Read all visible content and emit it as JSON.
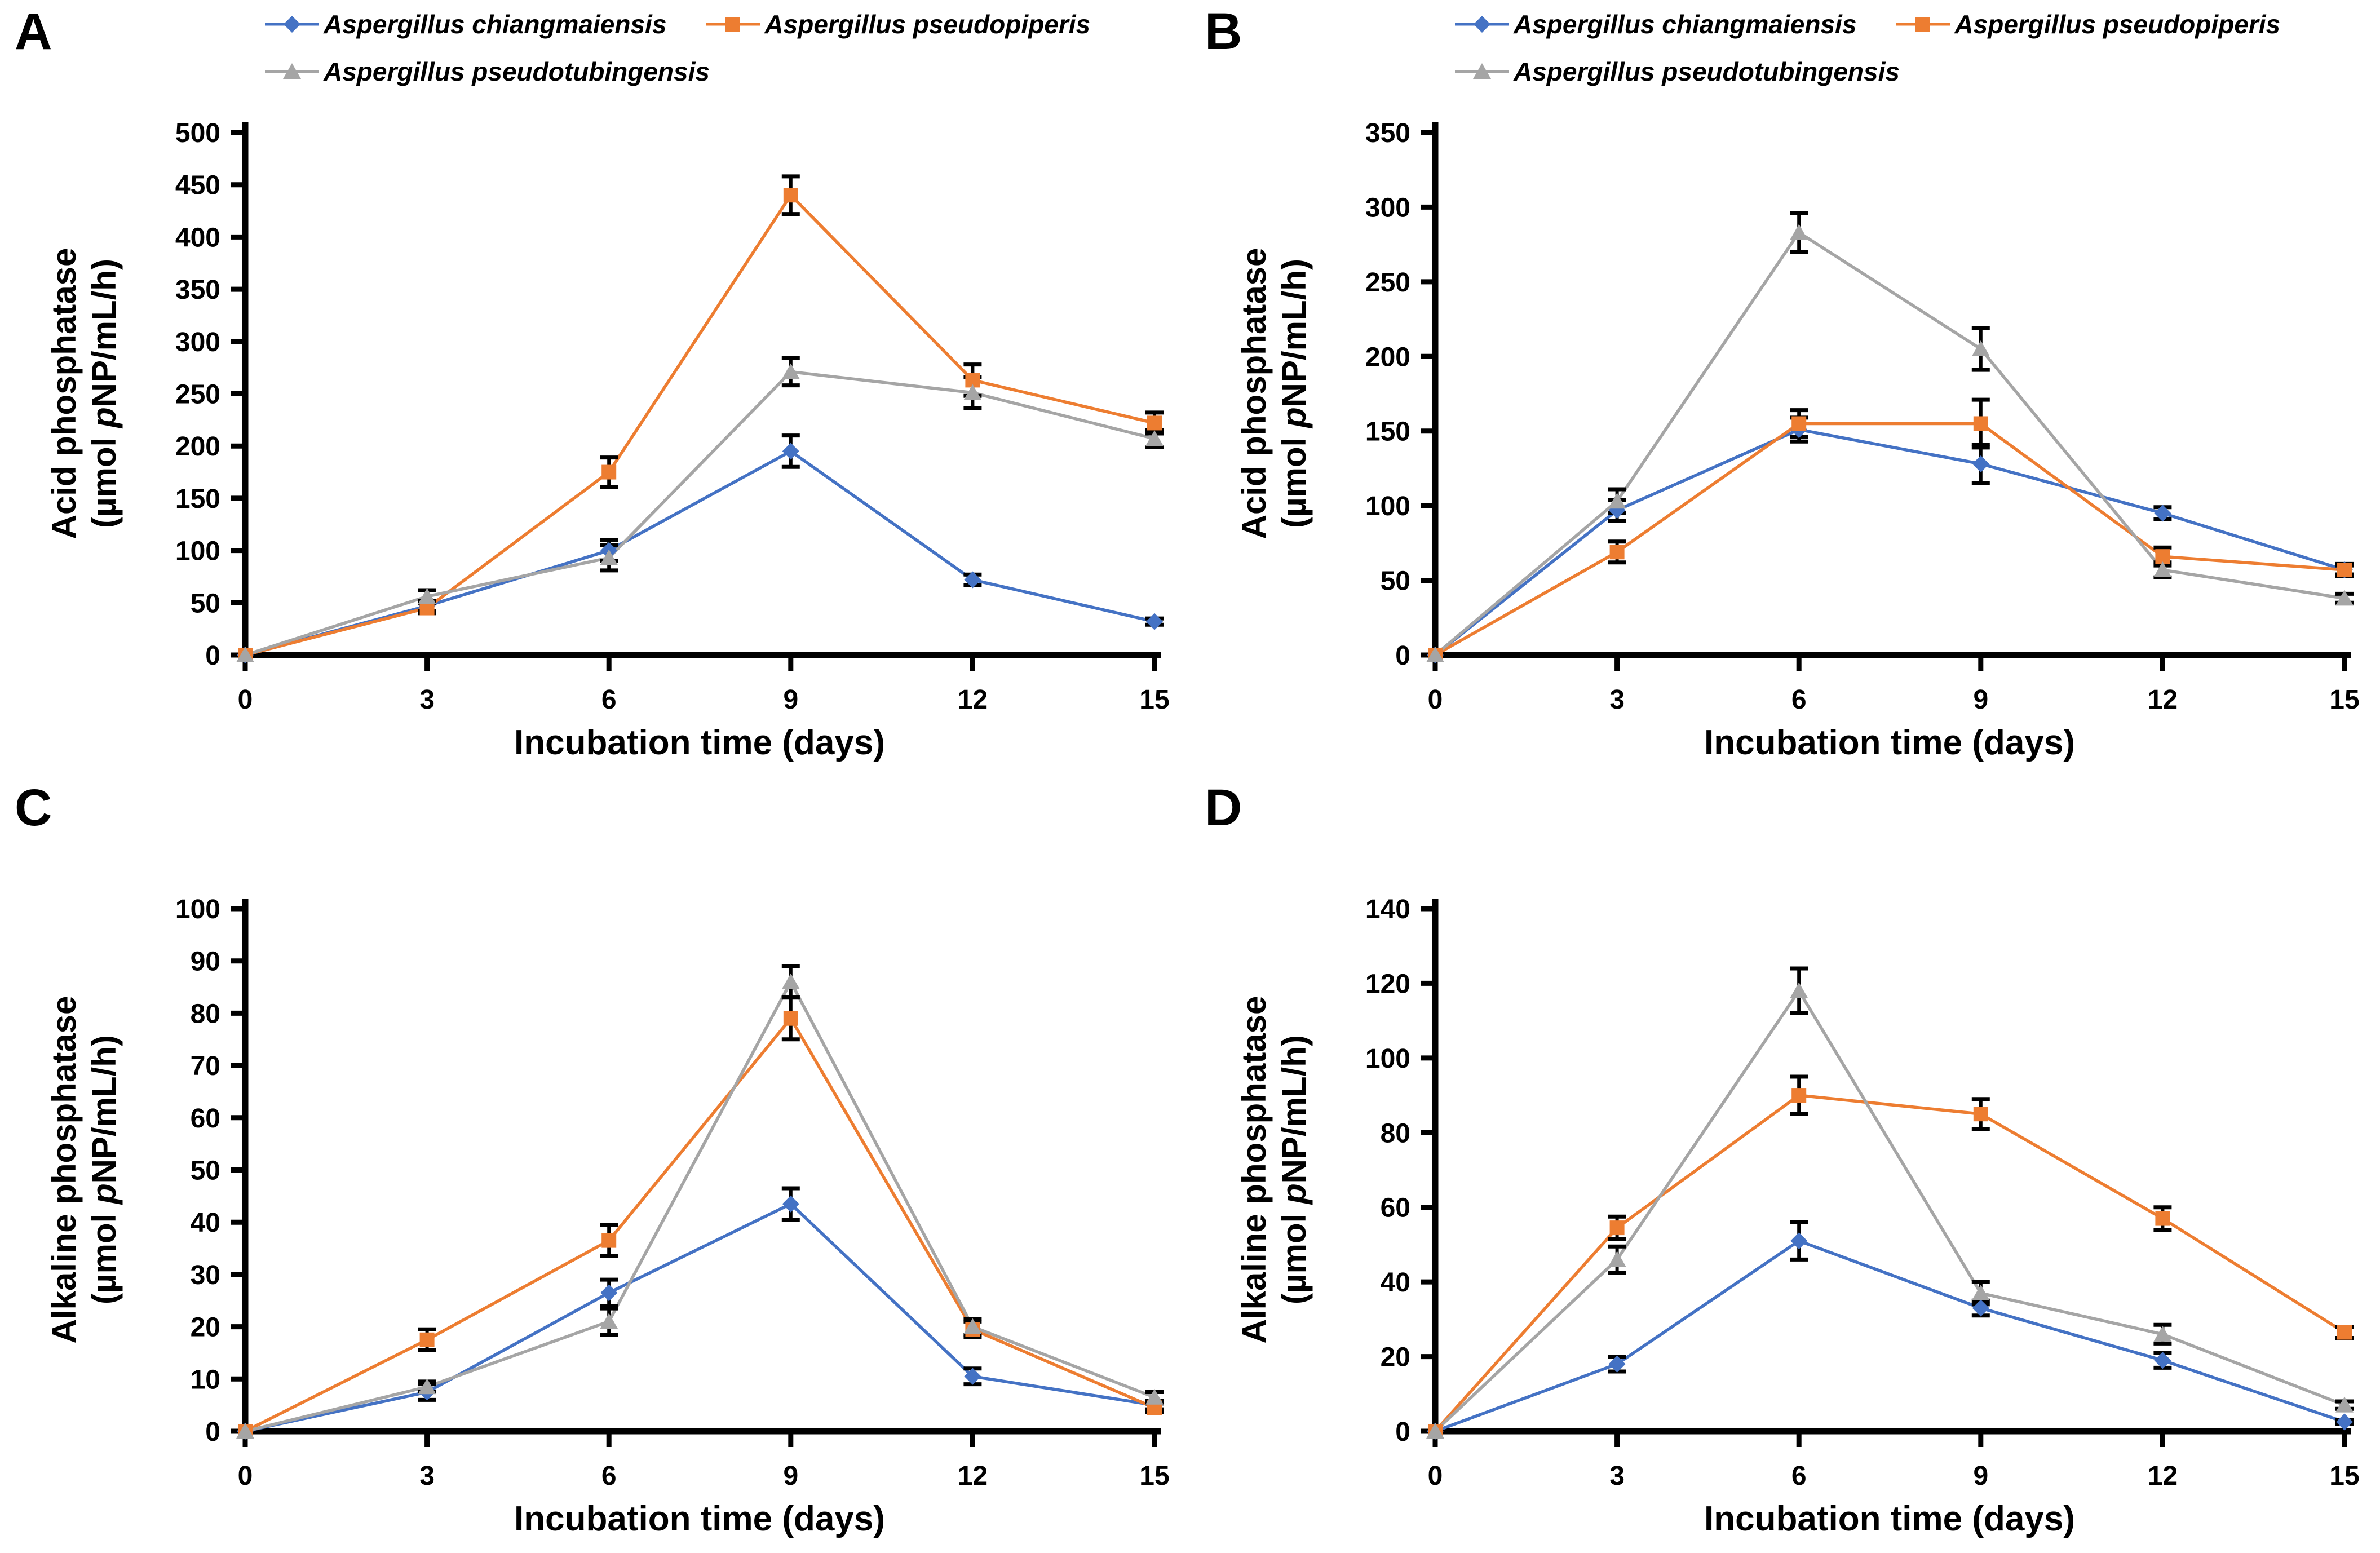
{
  "background": "#FFFFFF",
  "axis_color": "#000000",
  "error_bar_color": "#000000",
  "axis_unit_pre": "(µmol ",
  "axis_unit_italic": "p",
  "axis_unit_post": "NP/mL/h)",
  "legend": {
    "position": "top",
    "items": [
      {
        "label": "Aspergillus chiangmaiensis",
        "color": "#4472C4",
        "marker": "diamond"
      },
      {
        "label": "Aspergillus pseudopiperis",
        "color": "#ED7D31",
        "marker": "square"
      },
      {
        "label": "Aspergillus pseudotubingensis",
        "color": "#A5A5A5",
        "marker": "triangle"
      }
    ]
  },
  "chart_data": [
    {
      "type": "line",
      "panel_label": "A",
      "ylabel_line1": "Acid phosphatase",
      "xlabel": "Incubation time (days)",
      "x": [
        0,
        3,
        6,
        9,
        12,
        15
      ],
      "ylim": [
        0,
        500
      ],
      "ytick_step": 50,
      "grid": false,
      "series": [
        {
          "name": "Aspergillus chiangmaiensis",
          "color": "#4472C4",
          "marker": "diamond",
          "values": [
            0,
            47,
            100,
            195,
            72,
            32
          ],
          "errors": [
            0,
            5,
            10,
            15,
            5,
            3
          ]
        },
        {
          "name": "Aspergillus pseudopiperis",
          "color": "#ED7D31",
          "marker": "square",
          "values": [
            0,
            45,
            175,
            440,
            263,
            222
          ],
          "errors": [
            0,
            5,
            14,
            18,
            15,
            10
          ]
        },
        {
          "name": "Aspergillus pseudotubingensis",
          "color": "#A5A5A5",
          "marker": "triangle",
          "values": [
            0,
            56,
            93,
            271,
            251,
            207
          ],
          "errors": [
            0,
            6,
            12,
            13,
            15,
            8
          ]
        }
      ]
    },
    {
      "type": "line",
      "panel_label": "B",
      "ylabel_line1": "Acid phosphatase",
      "xlabel": "Incubation time (days)",
      "x": [
        0,
        3,
        6,
        9,
        12,
        15
      ],
      "ylim": [
        0,
        350
      ],
      "ytick_step": 50,
      "grid": false,
      "series": [
        {
          "name": "Aspergillus chiangmaiensis",
          "color": "#4472C4",
          "marker": "diamond",
          "values": [
            0,
            97,
            151,
            128,
            95,
            57
          ],
          "errors": [
            0,
            7,
            8,
            13,
            4,
            3
          ]
        },
        {
          "name": "Aspergillus pseudopiperis",
          "color": "#ED7D31",
          "marker": "square",
          "values": [
            0,
            69,
            155,
            155,
            66,
            57
          ],
          "errors": [
            0,
            7,
            9,
            16,
            6,
            4
          ]
        },
        {
          "name": "Aspergillus pseudotubingensis",
          "color": "#A5A5A5",
          "marker": "triangle",
          "values": [
            0,
            103,
            283,
            205,
            57,
            38
          ],
          "errors": [
            0,
            8,
            13,
            14,
            5,
            3
          ]
        }
      ]
    },
    {
      "type": "line",
      "panel_label": "C",
      "ylabel_line1": "Alkaline phosphatase",
      "xlabel": "Incubation time (days)",
      "x": [
        0,
        3,
        6,
        9,
        12,
        15
      ],
      "ylim": [
        0,
        100
      ],
      "ytick_step": 10,
      "grid": false,
      "series": [
        {
          "name": "Aspergillus chiangmaiensis",
          "color": "#4472C4",
          "marker": "diamond",
          "values": [
            0,
            7.5,
            26.5,
            43.5,
            10.5,
            5
          ],
          "errors": [
            0,
            1.5,
            2.5,
            3,
            1.5,
            0.8
          ]
        },
        {
          "name": "Aspergillus pseudopiperis",
          "color": "#ED7D31",
          "marker": "square",
          "values": [
            0,
            17.5,
            36.5,
            79,
            19.5,
            4.5
          ],
          "errors": [
            0,
            2,
            3,
            4,
            1.5,
            0.8
          ]
        },
        {
          "name": "Aspergillus pseudotubingensis",
          "color": "#A5A5A5",
          "marker": "triangle",
          "values": [
            0,
            8.5,
            21,
            86,
            20,
            6.5
          ],
          "errors": [
            0,
            1,
            2.5,
            3,
            1.5,
            1
          ]
        }
      ]
    },
    {
      "type": "line",
      "panel_label": "D",
      "ylabel_line1": "Alkaline phosphatase",
      "xlabel": "Incubation time (days)",
      "x": [
        0,
        3,
        6,
        9,
        12,
        15
      ],
      "ylim": [
        0,
        140
      ],
      "ytick_step": 20,
      "grid": false,
      "series": [
        {
          "name": "Aspergillus chiangmaiensis",
          "color": "#4472C4",
          "marker": "diamond",
          "values": [
            0,
            18,
            51,
            33,
            19,
            2.5
          ],
          "errors": [
            0,
            2,
            5,
            2,
            2,
            0.5
          ]
        },
        {
          "name": "Aspergillus pseudopiperis",
          "color": "#ED7D31",
          "marker": "square",
          "values": [
            0,
            54.5,
            90,
            85,
            57,
            26.5
          ],
          "errors": [
            0,
            3,
            5,
            4,
            3,
            1.5
          ]
        },
        {
          "name": "Aspergillus pseudotubingensis",
          "color": "#A5A5A5",
          "marker": "triangle",
          "values": [
            0,
            46,
            118,
            37,
            26,
            7
          ],
          "errors": [
            0,
            3.5,
            6,
            3,
            2.5,
            1
          ]
        }
      ]
    }
  ]
}
